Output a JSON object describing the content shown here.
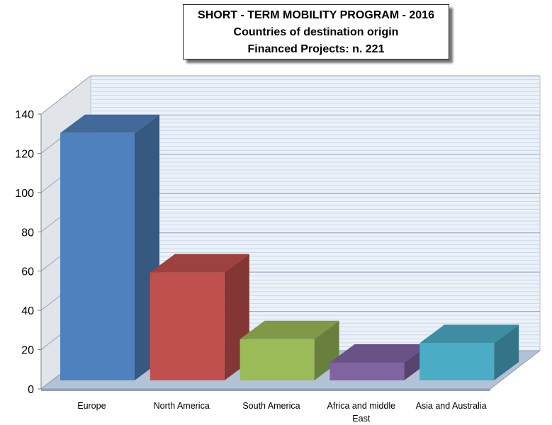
{
  "chart_data": {
    "type": "bar",
    "title": [
      "SHORT - TERM MOBILITY PROGRAM - 2016",
      "Countries of destination origin",
      "Financed Projects: n.  221"
    ],
    "categories": [
      "Europe",
      "North America",
      "South America",
      "Africa and  middle East",
      "Asia and Australia"
    ],
    "category_lines": [
      [
        "Europe"
      ],
      [
        "North America"
      ],
      [
        "South America"
      ],
      [
        "Africa and  middle",
        "East"
      ],
      [
        "Asia and Australia"
      ]
    ],
    "values": [
      126,
      55,
      21,
      9,
      19
    ],
    "colors": [
      "#4F81BD",
      "#C0504D",
      "#9BBB59",
      "#8064A2",
      "#4BACC6"
    ],
    "ylim": [
      0,
      140
    ],
    "yticks": [
      0,
      20,
      40,
      60,
      80,
      100,
      120,
      140
    ],
    "grid": true,
    "style": "3d-column"
  }
}
